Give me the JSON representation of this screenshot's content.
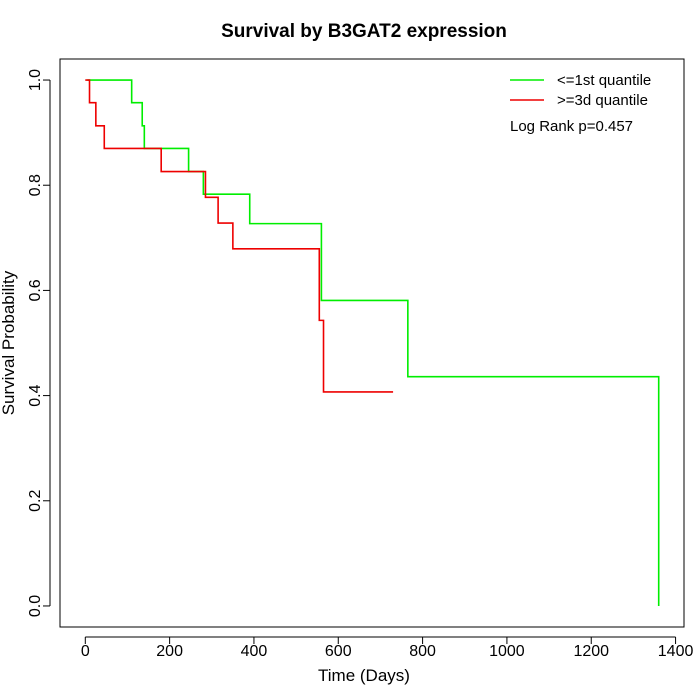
{
  "chart_data": {
    "type": "line",
    "title": "Survival by B3GAT2 expression",
    "xlabel": "Time (Days)",
    "ylabel": "Survival Probability",
    "xlim": [
      -60,
      1420
    ],
    "ylim": [
      -0.04,
      1.04
    ],
    "x_ticks": [
      0,
      200,
      400,
      600,
      800,
      1000,
      1200,
      1400
    ],
    "y_ticks": [
      0.0,
      0.2,
      0.4,
      0.6,
      0.8,
      1.0
    ],
    "y_tick_labels": [
      "0.0",
      "0.2",
      "0.4",
      "0.6",
      "0.8",
      "1.0"
    ],
    "grid": false,
    "legend_position": "top-right",
    "annotation": "Log Rank p=0.457",
    "series": [
      {
        "name": "<=1st quantile",
        "color": "#00ee00",
        "steps": [
          [
            5,
            1.0
          ],
          [
            110,
            0.957
          ],
          [
            135,
            0.913
          ],
          [
            140,
            0.87
          ],
          [
            245,
            0.826
          ],
          [
            280,
            0.783
          ],
          [
            390,
            0.727
          ],
          [
            560,
            0.581
          ],
          [
            765,
            0.436
          ],
          [
            1360,
            0.0
          ]
        ]
      },
      {
        "name": ">=3d quantile",
        "color": "#ee0000",
        "steps": [
          [
            0,
            1.0
          ],
          [
            10,
            0.957
          ],
          [
            25,
            0.913
          ],
          [
            45,
            0.87
          ],
          [
            180,
            0.826
          ],
          [
            285,
            0.777
          ],
          [
            315,
            0.728
          ],
          [
            350,
            0.679
          ],
          [
            555,
            0.543
          ],
          [
            565,
            0.407
          ],
          [
            730,
            0.407
          ]
        ]
      }
    ]
  }
}
